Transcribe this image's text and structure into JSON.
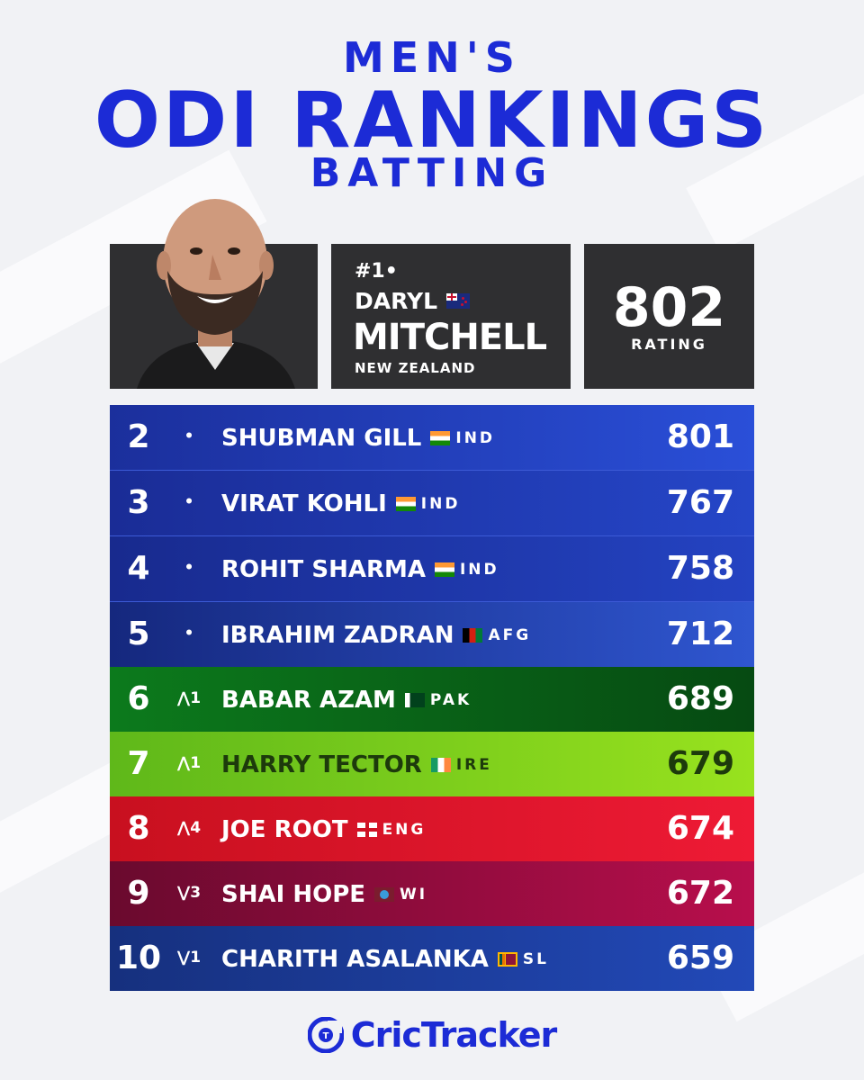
{
  "header": {
    "line1": "MEN'S",
    "line2": "ODI RANKINGS",
    "line3": "BATTING"
  },
  "top_player": {
    "rank_label": "#1•",
    "first_name": "DARYL",
    "last_name": "MITCHELL",
    "country": "NEW ZEALAND",
    "rating": "802",
    "rating_label": "RATING",
    "flag_icon": "new-zealand-flag-icon"
  },
  "rankings": [
    {
      "rank": "2",
      "change": "•",
      "name": "SHUBMAN GILL",
      "code": "IND",
      "score": "801",
      "flag_icon": "india-flag-icon"
    },
    {
      "rank": "3",
      "change": "•",
      "name": "VIRAT KOHLI",
      "code": "IND",
      "score": "767",
      "flag_icon": "india-flag-icon"
    },
    {
      "rank": "4",
      "change": "•",
      "name": "ROHIT SHARMA",
      "code": "IND",
      "score": "758",
      "flag_icon": "india-flag-icon"
    },
    {
      "rank": "5",
      "change": "•",
      "name": "IBRAHIM ZADRAN",
      "code": "AFG",
      "score": "712",
      "flag_icon": "afghanistan-flag-icon"
    },
    {
      "rank": "6",
      "change": "⋀1",
      "name": "BABAR AZAM",
      "code": "PAK",
      "score": "689",
      "flag_icon": "pakistan-flag-icon"
    },
    {
      "rank": "7",
      "change": "⋀1",
      "name": "HARRY TECTOR",
      "code": "IRE",
      "score": "679",
      "flag_icon": "ireland-flag-icon"
    },
    {
      "rank": "8",
      "change": "⋀4",
      "name": "JOE ROOT",
      "code": "ENG",
      "score": "674",
      "flag_icon": "england-flag-icon"
    },
    {
      "rank": "9",
      "change": "⋁3",
      "name": "SHAI HOPE",
      "code": "WI",
      "score": "672",
      "flag_icon": "west-indies-flag-icon"
    },
    {
      "rank": "10",
      "change": "⋁1",
      "name": "CHARITH ASALANKA",
      "code": "SL",
      "score": "659",
      "flag_icon": "sri-lanka-flag-icon"
    }
  ],
  "colors": {
    "title": "#1c2bd6",
    "card": "#2f2f31",
    "blue": "#1f3bc0",
    "green_dark": "#0a6e1a",
    "green_light": "#7fd41c",
    "red": "#e5162e",
    "maroon": "#8a0a3a"
  },
  "logo": {
    "text": "CricTracker",
    "icon": "crictracker-logo-icon"
  }
}
